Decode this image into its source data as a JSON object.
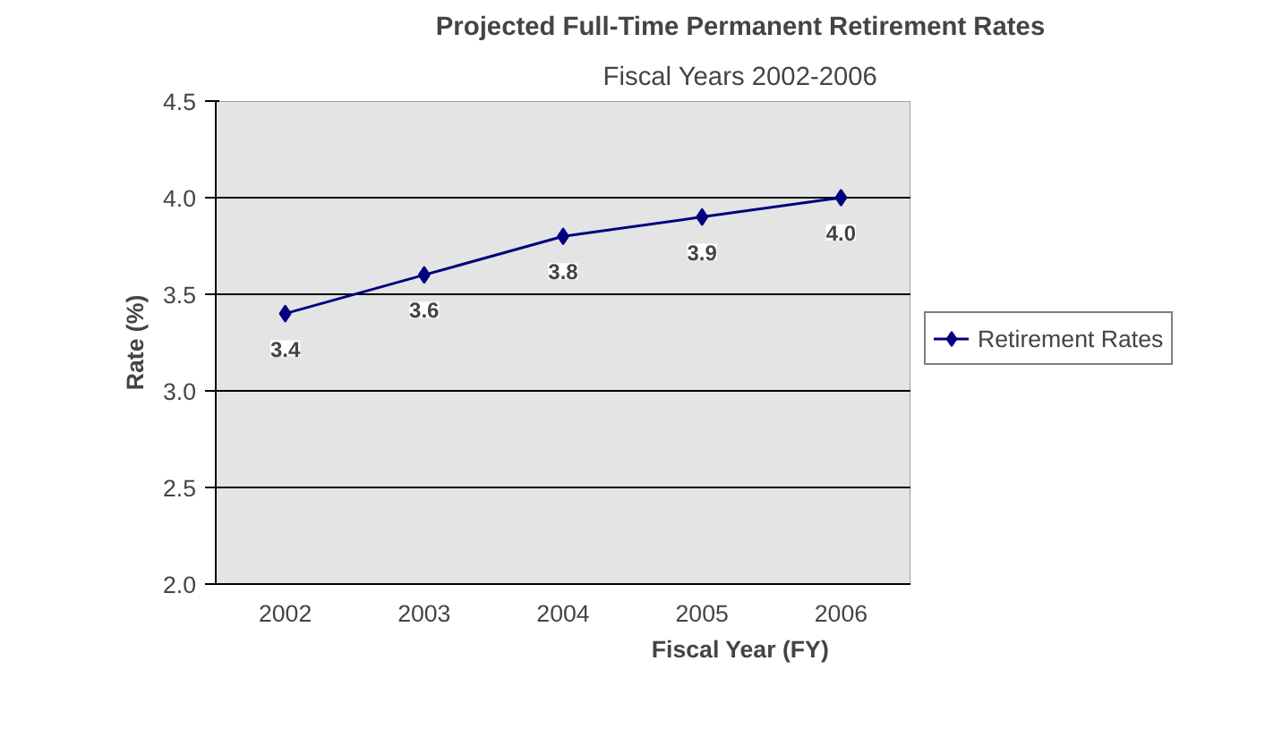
{
  "chart_data": {
    "type": "line",
    "title": "Projected Full-Time Permanent Retirement Rates",
    "subtitle": "Fiscal Years 2002-2006",
    "xlabel": "Fiscal Year (FY)",
    "ylabel": "Rate (%)",
    "categories": [
      "2002",
      "2003",
      "2004",
      "2005",
      "2006"
    ],
    "series": [
      {
        "name": "Retirement Rates",
        "color": "#000080",
        "values": [
          3.4,
          3.6,
          3.8,
          3.9,
          4.0
        ]
      }
    ],
    "ylim": [
      2.0,
      4.5
    ],
    "yticks": [
      {
        "value": 2.0,
        "label": "2.0"
      },
      {
        "value": 2.5,
        "label": "2.5"
      },
      {
        "value": 3.0,
        "label": "3.0"
      },
      {
        "value": 3.5,
        "label": "3.5"
      },
      {
        "value": 4.0,
        "label": "4.0"
      },
      {
        "value": 4.5,
        "label": "4.5"
      }
    ],
    "value_labels": [
      "3.4",
      "3.6",
      "3.8",
      "3.9",
      "4.0"
    ],
    "grid": "y",
    "legend": "right",
    "marker": "diamond",
    "line_style": "solid"
  }
}
